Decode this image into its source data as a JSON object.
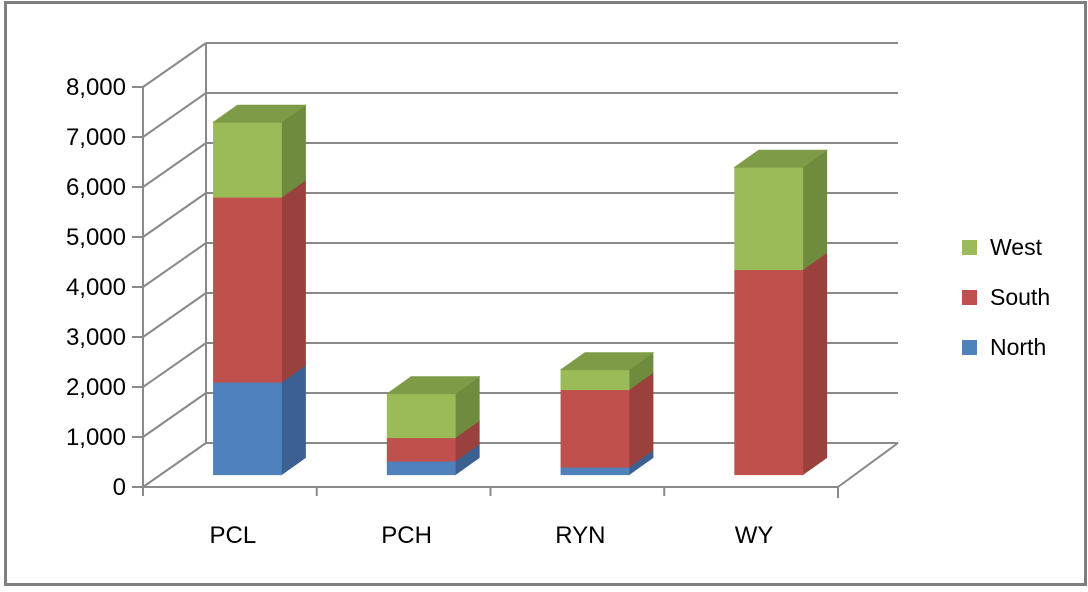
{
  "chart_data": {
    "type": "bar",
    "subtype": "3d-stacked-column",
    "title": "",
    "xlabel": "",
    "ylabel": "",
    "categories": [
      "PCL",
      "PCH",
      "RYN",
      "WY"
    ],
    "series": [
      {
        "name": "North",
        "color": "#4F81BD",
        "color_side": "#3A6191",
        "color_top": "#426F9F",
        "values": [
          1850,
          270,
          150,
          0
        ]
      },
      {
        "name": "South",
        "color": "#C0504D",
        "color_side": "#9A403D",
        "color_top": "#A74542",
        "values": [
          3700,
          470,
          1550,
          4100
        ]
      },
      {
        "name": "West",
        "color": "#9BBB59",
        "color_side": "#6F8B3E",
        "color_top": "#7E9B47",
        "values": [
          1500,
          880,
          400,
          2050
        ]
      }
    ],
    "stacked": true,
    "ylim": [
      0,
      8000
    ],
    "ytick_step": 1000,
    "ytick_labels": [
      "0",
      "1,000",
      "2,000",
      "3,000",
      "4,000",
      "5,000",
      "6,000",
      "7,000",
      "8,000"
    ],
    "grid": true,
    "legend_position": "right"
  },
  "legend": {
    "items": [
      {
        "label": "West",
        "color": "#9BBB59"
      },
      {
        "label": "South",
        "color": "#C0504D"
      },
      {
        "label": "North",
        "color": "#4F81BD"
      }
    ]
  },
  "styles": {
    "line_color": "#898989",
    "frame_color": "#7f7f7f",
    "text_color": "#000000",
    "background": "#ffffff"
  }
}
